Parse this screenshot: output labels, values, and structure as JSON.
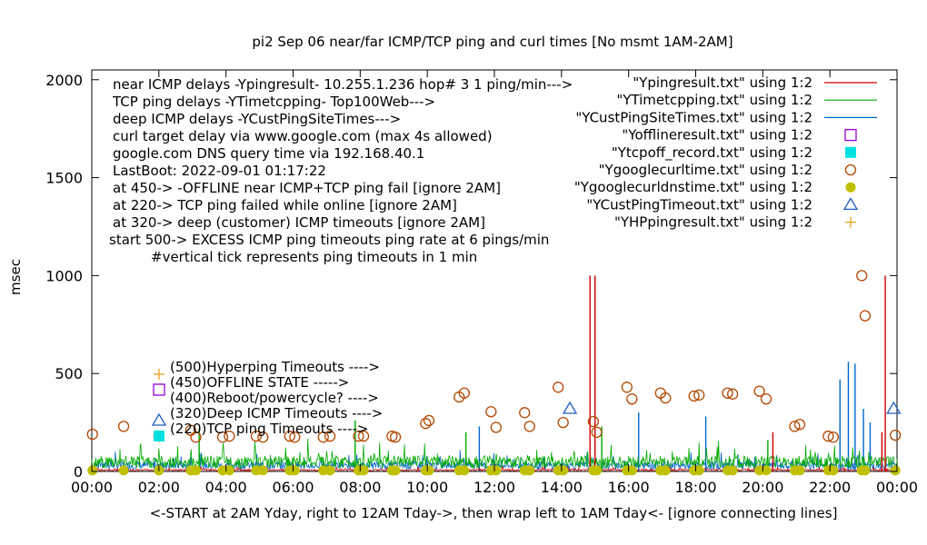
{
  "chart_data": {
    "type": "scatter",
    "title": "pi2 Sep 06  near/far ICMP/TCP ping and curl times [No msmt 1AM-2AM]",
    "ylabel": "msec",
    "xlabel": "<-START at 2AM Yday, right to 12AM Tday->, then wrap left to 1AM Tday<- [ignore connecting lines]",
    "xlim": [
      0,
      24
    ],
    "ylim": [
      0,
      2050
    ],
    "grid": false,
    "y_ticks": [
      "0",
      "500",
      "1000",
      "1500",
      "2000"
    ],
    "x_ticks": [
      "00:00",
      "02:00",
      "04:00",
      "06:00",
      "08:00",
      "10:00",
      "12:00",
      "14:00",
      "16:00",
      "18:00",
      "20:00",
      "22:00",
      "00:00"
    ],
    "notes": [
      "near ICMP delays -Ypingresult- 10.255.1.236 hop# 3 1 ping/min--->",
      "TCP ping delays -YTimetcpping- Top100Web--->",
      "deep ICMP delays -YCustPingSiteTimes--->",
      "curl target delay via www.google.com (max 4s allowed)",
      "google.com DNS query time via 192.168.40.1",
      "LastBoot: 2022-09-01 01:17:22",
      "at 450-> -OFFLINE near ICMP+TCP ping fail [ignore 2AM]",
      "at 220-> TCP ping failed while online [ignore 2AM]",
      "at 320-> deep (customer) ICMP timeouts [ignore 2AM]",
      "start 500-> EXCESS ICMP ping timeouts ping rate at 6 pings/min",
      "#vertical tick represents ping timeouts in 1 min"
    ],
    "legend_position": "top-right",
    "legend": [
      {
        "label": "\"Ypingresult.txt\" using 1:2",
        "style": "line",
        "color": "#cc0000"
      },
      {
        "label": "\"YTimetcpping.txt\" using 1:2",
        "style": "line",
        "color": "#00aa00"
      },
      {
        "label": "\"YCustPingSiteTimes.txt\" using 1:2",
        "style": "line",
        "color": "#0066cc"
      },
      {
        "label": "\"Yofflineresult.txt\" using 1:2",
        "style": "open-square",
        "color": "#9400d3"
      },
      {
        "label": "\"Ytcpoff_record.txt\" using 1:2",
        "style": "filled-square",
        "color": "#00e0e0"
      },
      {
        "label": "\"Ygooglecurltime.txt\" using 1:2",
        "style": "open-circle",
        "color": "#b34700"
      },
      {
        "label": "\"Ygooglecurldnstime.txt\" using 1:2",
        "style": "filled-circle",
        "color": "#c0c000"
      },
      {
        "label": "\"YCustPingTimeout.txt\" using 1:2",
        "style": "open-triangle",
        "color": "#1f5fbf"
      },
      {
        "label": "\"YHPpingresult.txt\" using 1:2",
        "style": "plus",
        "color": "#e6a020"
      }
    ],
    "key_markers": [
      {
        "label": "(500)Hyperping Timeouts ---->",
        "style": "plus",
        "color": "#e6a020"
      },
      {
        "label": "(450)OFFLINE STATE ----->",
        "style": "open-square",
        "color": "#9400d3"
      },
      {
        "label": "(400)Reboot/powercycle? ---->",
        "style": "open-square",
        "color": "#ffffff"
      },
      {
        "label": "(320)Deep ICMP Timeouts ---->",
        "style": "open-triangle",
        "color": "#1f5fbf"
      },
      {
        "label": "(220)TCP ping Timeouts ---->",
        "style": "filled-square",
        "color": "#00e0e0"
      }
    ],
    "series": [
      {
        "name": "Ygooglecurltime.txt",
        "points": [
          [
            0.02,
            190
          ],
          [
            0.95,
            230
          ],
          [
            2.0,
            180
          ],
          [
            2.95,
            210
          ],
          [
            3.1,
            175
          ],
          [
            3.9,
            175
          ],
          [
            4.1,
            180
          ],
          [
            4.9,
            180
          ],
          [
            5.1,
            175
          ],
          [
            5.9,
            180
          ],
          [
            6.05,
            175
          ],
          [
            6.9,
            175
          ],
          [
            7.1,
            180
          ],
          [
            7.95,
            180
          ],
          [
            8.1,
            180
          ],
          [
            8.95,
            180
          ],
          [
            9.05,
            175
          ],
          [
            9.95,
            245
          ],
          [
            10.05,
            260
          ],
          [
            10.95,
            380
          ],
          [
            11.1,
            400
          ],
          [
            11.9,
            305
          ],
          [
            12.05,
            225
          ],
          [
            12.9,
            300
          ],
          [
            13.05,
            230
          ],
          [
            13.9,
            430
          ],
          [
            14.05,
            250
          ],
          [
            14.95,
            255
          ],
          [
            15.05,
            200
          ],
          [
            15.95,
            430
          ],
          [
            16.1,
            370
          ],
          [
            16.95,
            400
          ],
          [
            17.1,
            375
          ],
          [
            17.95,
            385
          ],
          [
            18.1,
            390
          ],
          [
            18.95,
            400
          ],
          [
            19.1,
            395
          ],
          [
            19.9,
            410
          ],
          [
            20.1,
            370
          ],
          [
            20.95,
            230
          ],
          [
            21.1,
            240
          ],
          [
            21.95,
            180
          ],
          [
            22.1,
            175
          ],
          [
            22.95,
            1000
          ],
          [
            23.05,
            795
          ],
          [
            23.95,
            185
          ]
        ]
      },
      {
        "name": "Ygooglecurldnstime.txt",
        "points": [
          [
            0.02,
            5
          ],
          [
            0.95,
            5
          ],
          [
            2.0,
            5
          ],
          [
            2.95,
            5
          ],
          [
            3.1,
            5
          ],
          [
            3.9,
            5
          ],
          [
            4.1,
            5
          ],
          [
            4.9,
            5
          ],
          [
            5.1,
            5
          ],
          [
            5.9,
            5
          ],
          [
            6.05,
            5
          ],
          [
            6.9,
            5
          ],
          [
            7.1,
            5
          ],
          [
            7.95,
            5
          ],
          [
            8.1,
            5
          ],
          [
            8.95,
            5
          ],
          [
            9.05,
            5
          ],
          [
            9.95,
            5
          ],
          [
            10.05,
            5
          ],
          [
            10.95,
            5
          ],
          [
            11.1,
            5
          ],
          [
            11.9,
            5
          ],
          [
            12.05,
            5
          ],
          [
            12.9,
            5
          ],
          [
            13.05,
            5
          ],
          [
            13.9,
            5
          ],
          [
            14.05,
            5
          ],
          [
            14.95,
            5
          ],
          [
            15.05,
            5
          ],
          [
            15.95,
            5
          ],
          [
            16.1,
            5
          ],
          [
            16.95,
            5
          ],
          [
            17.1,
            5
          ],
          [
            17.95,
            5
          ],
          [
            18.1,
            5
          ],
          [
            18.95,
            5
          ],
          [
            19.1,
            5
          ],
          [
            19.9,
            5
          ],
          [
            20.1,
            5
          ],
          [
            20.95,
            5
          ],
          [
            21.1,
            5
          ],
          [
            21.95,
            5
          ],
          [
            22.1,
            5
          ],
          [
            22.95,
            5
          ],
          [
            23.05,
            5
          ],
          [
            23.95,
            5
          ]
        ]
      },
      {
        "name": "YCustPingTimeout.txt",
        "points": [
          [
            14.25,
            320
          ],
          [
            23.9,
            320
          ]
        ]
      },
      {
        "name": "Ypingresult.txt",
        "spikes": [
          [
            14.85,
            1000
          ],
          [
            15.0,
            1000
          ],
          [
            20.3,
            200
          ],
          [
            23.55,
            200
          ],
          [
            23.65,
            1000
          ]
        ],
        "baseline": 6
      },
      {
        "name": "YTimetcpping.txt",
        "baseline": 40,
        "spikes": [
          [
            3.2,
            220
          ],
          [
            7.85,
            260
          ],
          [
            11.15,
            200
          ],
          [
            15.2,
            230
          ],
          [
            20.15,
            160
          ]
        ]
      },
      {
        "name": "YCustPingSiteTimes.txt",
        "baseline": 25,
        "spikes": [
          [
            11.55,
            230
          ],
          [
            16.3,
            300
          ],
          [
            18.3,
            280
          ],
          [
            22.3,
            470
          ],
          [
            22.55,
            560
          ],
          [
            22.75,
            550
          ],
          [
            23.0,
            320
          ],
          [
            23.2,
            250
          ]
        ]
      }
    ]
  }
}
